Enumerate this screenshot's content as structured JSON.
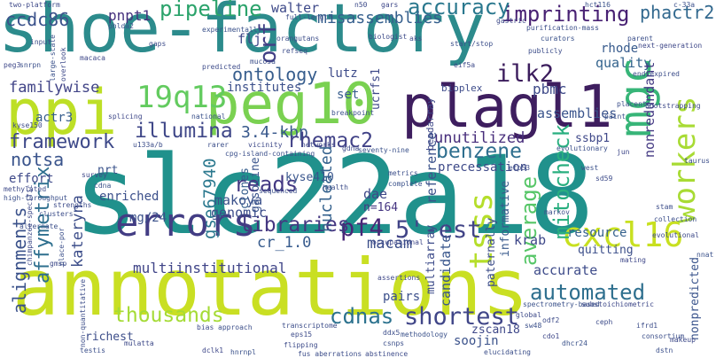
{
  "cloud": {
    "words": {
      "shoe_factory": "shoe-factory",
      "slc22a18": "slc22a18",
      "annotations": "annotations",
      "ppi": "ppi",
      "peg10": "peg10",
      "plagl1": "plagl1",
      "mgc": "mgc",
      "errors": "errors",
      "cxcl16": "cxcl16",
      "q13": "19q13",
      "tsss": "tsss",
      "workers": "workers",
      "pf4": "pf4",
      "est": "5'-est",
      "ilk2": "ilk2",
      "imprinting": "imprinting",
      "accuracy": "accuracy",
      "pipeline": "pipeline",
      "ccdc86": "ccdc86",
      "pnpt1": "pnpt1",
      "phactr2": "phactr2",
      "misassemblies": "misassemblies",
      "orf": "orf",
      "ontology": "ontology",
      "illumina": "illumina",
      "kbp": "3.4-kbp",
      "rhemac2": "rhemac2",
      "benzene": "benzene",
      "framework": "framework",
      "reads": "reads",
      "gse67940": "gse67940",
      "affymetrix": "affymetrix",
      "alignments": "alignments",
      "thousands": "thousands",
      "cdnas": "cdnas",
      "shortest": "shortest",
      "automated": "automated",
      "average": "average",
      "mitocheck": "mitocheck",
      "libraries": "libraries",
      "multiinstitutional": "multiinstitutional",
      "unutilized": "unutilized",
      "familywise": "familywise",
      "institutes": "institutes",
      "walter": "walter",
      "lutz": "lutz",
      "pbmc": "pbmc",
      "quality": "quality",
      "rhode": "rhode",
      "assemblies": "assemblies",
      "ssbp1": "ssbp1",
      "nonredundant": "nonredundant",
      "notsa": "notsa",
      "kateryna": "kateryna",
      "makoya": "makoya",
      "genomic": "genomic",
      "clones": "clones",
      "gasoline": "gasoline",
      "kyse410": "kyse410",
      "nucleated": "nucleated",
      "dae": "dae",
      "n164": "n=164",
      "macam": "macam",
      "cr10": "cr_1.0",
      "reference": "reference",
      "candidate": "candidate",
      "paternally": "paternally",
      "informative": "informative",
      "krab": "krab",
      "accurate": "accurate",
      "resource": "resource",
      "quitting": "quitting",
      "precessation": "precessation",
      "enriched": "enriched",
      "mg24": "mg/24",
      "effort": "effort",
      "actr3": "actr3",
      "nrt": "nrt",
      "zscan18": "zscan18",
      "soojin": "soojin",
      "pairs": "pairs",
      "multiarray": "multiarray",
      "richest": "richest",
      "nonpredicted": "nonpredicted",
      "flj": "flj",
      "set": "set",
      "ucrfs1": "ucrfs1",
      "beadarray": "beadarray",
      "bioplex": "bioplex",
      "gars": "gars",
      "n50": "n50",
      "hct116": "hct116",
      "c33a": "c-33a",
      "two_platform": "two-platform",
      "full_length": "full-length",
      "experimentally": "experimentally",
      "gastric": "gastric",
      "purification": "purification-mass",
      "orangutans": "orangutans",
      "biologist": "biologist",
      "curators": "curators",
      "parent": "parent",
      "next_generation": "next-generation",
      "end_expired": "end-expired",
      "bootstrapping": "bootstrapping",
      "placenta": "placenta",
      "paint": "paint",
      "refseq": "refseq",
      "mucosa": "mucosa",
      "predicted": "predicted",
      "macaca": "macaca",
      "large_scale": "large-scale",
      "overlook": "overlook",
      "input": "input",
      "snrpn": "snrpn",
      "peg3": "peg3",
      "gaps": "gaps",
      "phlda2": "phlda2",
      "start_stop": "start/stop",
      "publicly": "publicly",
      "eif5a": "eif5a",
      "breakpoint": "breakpoint",
      "splicing": "splicing",
      "national": "national",
      "kyse150": "kyse150",
      "u133a_b": "u133a/b",
      "rarer": "rarer",
      "vicinity": "vicinity",
      "cpg_island": "cpg-island-containing",
      "networks": "networks",
      "seventy_nine": "seventy-nine",
      "gdna": "gdna",
      "health": "health",
      "metrics": "metrics",
      "methylated": "methylated",
      "high_throughput": "high-throughput",
      "survey": "survey",
      "cdna": "cdna",
      "strengths": "strengths",
      "clusters": "clusters",
      "alternate": "alternate",
      "gmsp": "gmsp",
      "evolutionary": "evolutionary",
      "jun": "jun",
      "west": "west",
      "sd59": "sd59",
      "stam": "stam",
      "collection": "collection",
      "evolutional": "evolutional",
      "markov": "markov",
      "mating": "mating",
      "nnat": "nnat",
      "eps15": "eps15",
      "ddx5": "ddx5",
      "csnps": "csnps",
      "mulatta": "mulatta",
      "testis": "testis",
      "dclk1": "dclk1",
      "hnrnpl": "hnrnpl",
      "flipping": "flipping",
      "transcriptome": "transcriptome",
      "approach": "approach",
      "bias": "bias",
      "sequenced": "sequenced",
      "assertions": "assertions",
      "methodology": "methodology",
      "abstinence": "abstinence",
      "fus_aberrations": "fus aberrations",
      "elucidating": "elucidating",
      "global": "global",
      "sw48": "sw48",
      "cdo1": "cdo1",
      "dhcr24": "dhcr24",
      "ceph": "ceph",
      "ifrd1": "ifrd1",
      "consortium": "consortium",
      "makeup": "makeup",
      "dstn": "dstn",
      "substoichiometric": "substoichiometric",
      "spectrometry_based": "spectrometry-based",
      "odf2": "odf2",
      "etp53": "etp53",
      "taurus": "taurus",
      "chimpanzee": "chimpanzee-specific",
      "place_por": "place-por",
      "occupational": "occupational",
      "complete": "complete",
      "aks": "aks",
      "non_quantitative": "non-quantitative"
    }
  }
}
